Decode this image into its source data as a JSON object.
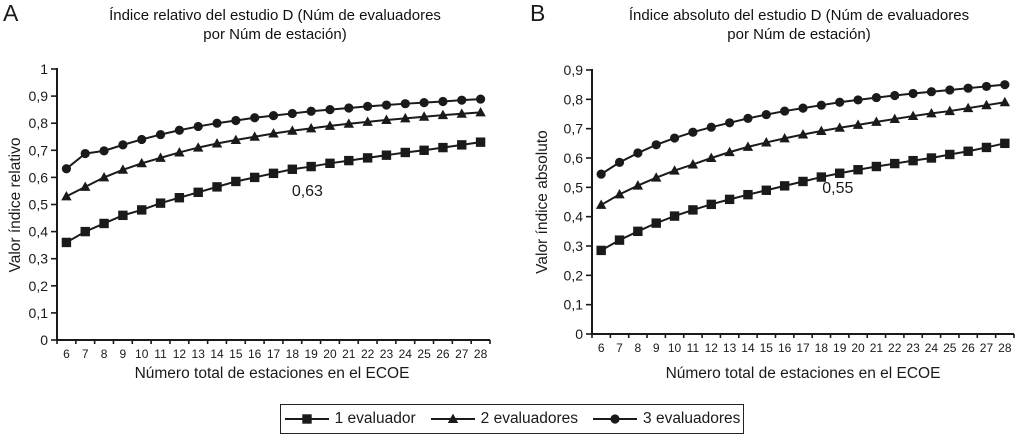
{
  "figure": {
    "panels": [
      {
        "letter": "A"
      },
      {
        "letter": "B"
      }
    ]
  },
  "chart_data": [
    {
      "type": "line",
      "panel_label": "A",
      "title": "Índice relativo del estudio D (Núm de evaluadores por Núm de estación)",
      "title_line1": "Índice relativo del estudio D (Núm de evaluadores",
      "title_line2": "por Núm de estación)",
      "ylabel": "Valor índice relativo",
      "xlabel": "Número total de estaciones en el ECOE",
      "ylim": [
        0,
        1
      ],
      "ytick_labels": [
        "0",
        "0,1",
        "0,2",
        "0,3",
        "0,4",
        "0,5",
        "0,6",
        "0,7",
        "0,8",
        "0,9",
        "1"
      ],
      "x": [
        6,
        7,
        8,
        9,
        10,
        11,
        12,
        13,
        14,
        15,
        16,
        17,
        18,
        19,
        20,
        21,
        22,
        23,
        24,
        25,
        26,
        27,
        28
      ],
      "grid": false,
      "series": [
        {
          "name": "1 evaluador",
          "marker": "square",
          "values": [
            0.36,
            0.4,
            0.43,
            0.46,
            0.48,
            0.505,
            0.525,
            0.545,
            0.565,
            0.585,
            0.6,
            0.615,
            0.63,
            0.64,
            0.652,
            0.662,
            0.672,
            0.682,
            0.692,
            0.7,
            0.71,
            0.72,
            0.73
          ]
        },
        {
          "name": "2 evaluadores",
          "marker": "triangle",
          "values": [
            0.53,
            0.565,
            0.6,
            0.628,
            0.652,
            0.672,
            0.692,
            0.71,
            0.725,
            0.738,
            0.75,
            0.762,
            0.772,
            0.781,
            0.79,
            0.798,
            0.805,
            0.812,
            0.818,
            0.824,
            0.83,
            0.835,
            0.84
          ]
        },
        {
          "name": "3 evaluadores",
          "marker": "circle",
          "values": [
            0.632,
            0.688,
            0.698,
            0.72,
            0.74,
            0.758,
            0.774,
            0.788,
            0.8,
            0.81,
            0.82,
            0.828,
            0.836,
            0.844,
            0.85,
            0.856,
            0.862,
            0.867,
            0.872,
            0.876,
            0.88,
            0.885,
            0.889
          ]
        }
      ],
      "annotation": {
        "text": "0,63",
        "at_x": 18.8,
        "at_y": 0.531
      }
    },
    {
      "type": "line",
      "panel_label": "B",
      "title": "Índice absoluto del estudio D (Núm de evaluadores por Núm de estación)",
      "title_line1": "Índice absoluto del estudio D (Núm de evaluadores",
      "title_line2": "por Núm de estación)",
      "ylabel": "Valor índice absoluto",
      "xlabel": "Número total de estaciones en el ECOE",
      "ylim": [
        0,
        0.9
      ],
      "ytick_labels": [
        "0",
        "0,1",
        "0,2",
        "0,3",
        "0,4",
        "0,5",
        "0,6",
        "0,7",
        "0,8",
        "0,9"
      ],
      "x": [
        6,
        7,
        8,
        9,
        10,
        11,
        12,
        13,
        14,
        15,
        16,
        17,
        18,
        19,
        20,
        21,
        22,
        23,
        24,
        25,
        26,
        27,
        28
      ],
      "grid": false,
      "series": [
        {
          "name": "1 evaluador",
          "marker": "square",
          "values": [
            0.285,
            0.32,
            0.35,
            0.378,
            0.402,
            0.423,
            0.442,
            0.459,
            0.475,
            0.49,
            0.505,
            0.52,
            0.535,
            0.548,
            0.56,
            0.571,
            0.581,
            0.591,
            0.6,
            0.612,
            0.623,
            0.636,
            0.65
          ]
        },
        {
          "name": "2 evaluadores",
          "marker": "triangle",
          "values": [
            0.44,
            0.476,
            0.506,
            0.533,
            0.557,
            0.578,
            0.6,
            0.62,
            0.638,
            0.653,
            0.667,
            0.68,
            0.692,
            0.703,
            0.713,
            0.723,
            0.733,
            0.743,
            0.752,
            0.76,
            0.77,
            0.78,
            0.79
          ]
        },
        {
          "name": "3 evaluadores",
          "marker": "circle",
          "values": [
            0.545,
            0.585,
            0.617,
            0.645,
            0.668,
            0.688,
            0.705,
            0.72,
            0.735,
            0.748,
            0.76,
            0.77,
            0.78,
            0.79,
            0.798,
            0.806,
            0.813,
            0.82,
            0.826,
            0.832,
            0.838,
            0.844,
            0.85
          ]
        }
      ],
      "annotation": {
        "text": "0,55",
        "at_x": 18.9,
        "at_y": 0.481
      }
    }
  ],
  "legend": {
    "position": "bottom-center",
    "items": [
      {
        "label": "1 evaluador",
        "marker": "square"
      },
      {
        "label": "2 evaluadores",
        "marker": "triangle"
      },
      {
        "label": "3 evaluadores",
        "marker": "circle"
      }
    ]
  },
  "colors": {
    "series": "#1a1a1a",
    "background": "#ffffff"
  }
}
